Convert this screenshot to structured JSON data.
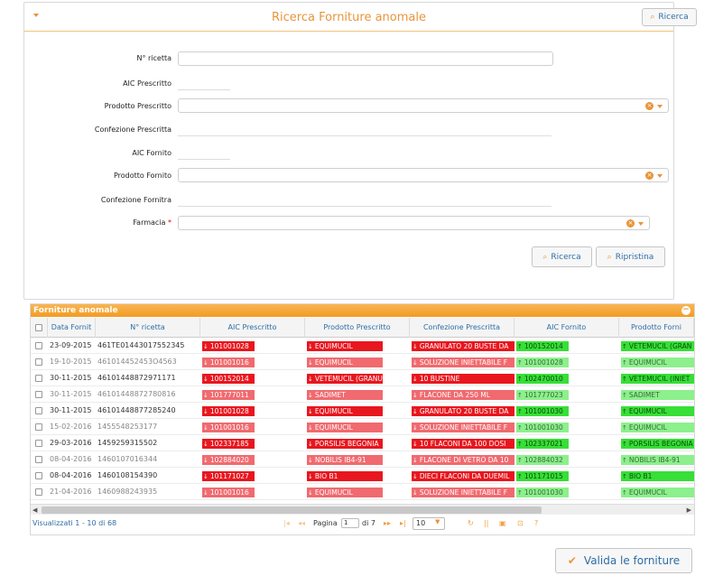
{
  "search_panel": {
    "title": "Ricerca Forniture anomale",
    "header_search_label": "Ricerca",
    "fields": {
      "n_ricetta": "N° ricetta",
      "aic_prescritto": "AIC Prescritto",
      "prodotto_prescritto": "Prodotto Prescritto",
      "confezione_prescritta": "Confezione Prescritta",
      "aic_fornito": "AIC Fornito",
      "prodotto_fornito": "Prodotto Fornito",
      "confezione_fornita": "Confezione Fornitra",
      "farmacia": "Farmacia"
    },
    "required_mark": "*",
    "search_button": "Ricerca",
    "reset_button": "Ripristina"
  },
  "grid": {
    "title": "Forniture anomale",
    "columns": [
      "Data Fornit",
      "N° ricetta",
      "AIC Prescritto",
      "Prodotto Prescritto",
      "Confezione Prescritta",
      "AIC Fornito",
      "Prodotto Forni"
    ],
    "rows": [
      {
        "date": "23-09-2015",
        "ricetta": "461TE01443017552345",
        "aic_p": "101001028",
        "prod_p": "EQUIMUCIL",
        "conf_p": "GRANULATO 20 BUSTE DA",
        "aic_f": "100152014",
        "prod_f": "VETEMUCIL (GRAN",
        "dim": false
      },
      {
        "date": "19-10-2015",
        "ricetta": "461014452453O4563",
        "aic_p": "101001016",
        "prod_p": "EQUIMUCIL",
        "conf_p": "SOLUZIONE INIETTABILE F",
        "aic_f": "101001028",
        "prod_f": "EQUIMUCIL",
        "dim": true
      },
      {
        "date": "30-11-2015",
        "ricetta": "46101448872971171",
        "aic_p": "100152014",
        "prod_p": "VETEMUCIL (GRANULATO)",
        "conf_p": "10 BUSTINE",
        "aic_f": "102470010",
        "prod_f": "VETEMUCIL (INIET",
        "dim": false
      },
      {
        "date": "30-11-2015",
        "ricetta": "46101448872780816",
        "aic_p": "101777011",
        "prod_p": "SADIMET",
        "conf_p": "FLACONE DA 250 ML",
        "aic_f": "101777023",
        "prod_f": "SADIMET",
        "dim": true
      },
      {
        "date": "30-11-2015",
        "ricetta": "46101448877285240",
        "aic_p": "101001028",
        "prod_p": "EQUIMUCIL",
        "conf_p": "GRANULATO 20 BUSTE DA",
        "aic_f": "101001030",
        "prod_f": "EQUIMUCIL",
        "dim": false
      },
      {
        "date": "15-02-2016",
        "ricetta": "1455548253177",
        "aic_p": "101001016",
        "prod_p": "EQUIMUCIL",
        "conf_p": "SOLUZIONE INIETTABILE F",
        "aic_f": "101001030",
        "prod_f": "EQUIMUCIL",
        "dim": true
      },
      {
        "date": "29-03-2016",
        "ricetta": "1459259315502",
        "aic_p": "102337185",
        "prod_p": "PORSILIS BEGONIA",
        "conf_p": "10 FLACONI DA 100 DOSI",
        "aic_f": "102337021",
        "prod_f": "PORSILIS BEGONIA",
        "dim": false
      },
      {
        "date": "08-04-2016",
        "ricetta": "1460107016344",
        "aic_p": "102884020",
        "prod_p": "NOBILIS IB4-91",
        "conf_p": "FLACONE DI VETRO DA 10",
        "aic_f": "102884032",
        "prod_f": "NOBILIS IB4-91",
        "dim": true
      },
      {
        "date": "08-04-2016",
        "ricetta": "1460108154390",
        "aic_p": "101171027",
        "prod_p": "BIO B1",
        "conf_p": "DIECI FLACONI DA DUEMIL",
        "aic_f": "101171015",
        "prod_f": "BIO B1",
        "dim": false
      },
      {
        "date": "21-04-2016",
        "ricetta": "1460988243935",
        "aic_p": "101001016",
        "prod_p": "EQUIMUCIL",
        "conf_p": "SOLUZIONE INIETTABILE F",
        "aic_f": "101001030",
        "prod_f": "EQUIMUCIL",
        "dim": true
      }
    ],
    "footer": {
      "viewing": "Visualizzati 1 - 10 di 68",
      "page_label": "Pagina",
      "page_value": "1",
      "of_label": "di 7",
      "page_size": "10"
    }
  },
  "valida_button": "Valida le forniture",
  "colors": {
    "accent": "#e8953a",
    "link": "#2e6da4",
    "bad": "#e8161e",
    "good": "#37df37"
  }
}
